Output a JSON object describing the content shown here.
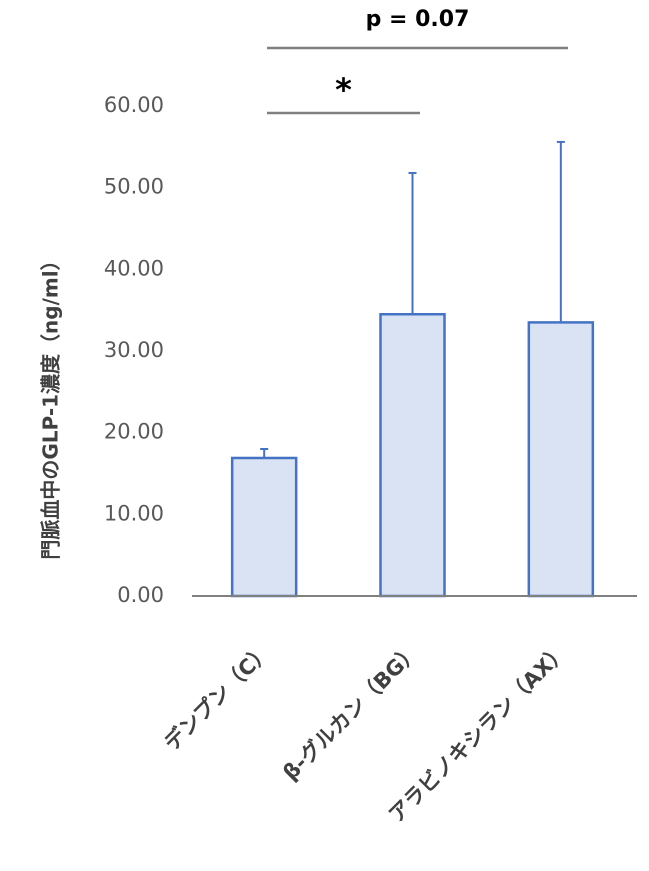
{
  "chart_data": {
    "type": "bar",
    "y_label": "門脈血中のGLP-1濃度（ng/ml）",
    "categories": [
      "デンプン（C）",
      "β-グルカン（BG）",
      "アラビノキシラン（AX）"
    ],
    "values": [
      16.9,
      34.5,
      33.5
    ],
    "errors": [
      1.1,
      17.3,
      22.1
    ],
    "color": "#dae3f3",
    "edge_color": "#4472c4",
    "ylim": [
      0,
      60
    ],
    "yticks": [
      {
        "value": 0,
        "label": "0.00"
      },
      {
        "value": 10,
        "label": "10.00"
      },
      {
        "value": 20,
        "label": "20.00"
      },
      {
        "value": 30,
        "label": "30.00"
      },
      {
        "value": 40,
        "label": "40.00"
      },
      {
        "value": 50,
        "label": "50.00"
      },
      {
        "value": 60,
        "label": "60.00"
      }
    ],
    "annotations": [
      "*",
      "p = 0.07"
    ]
  }
}
